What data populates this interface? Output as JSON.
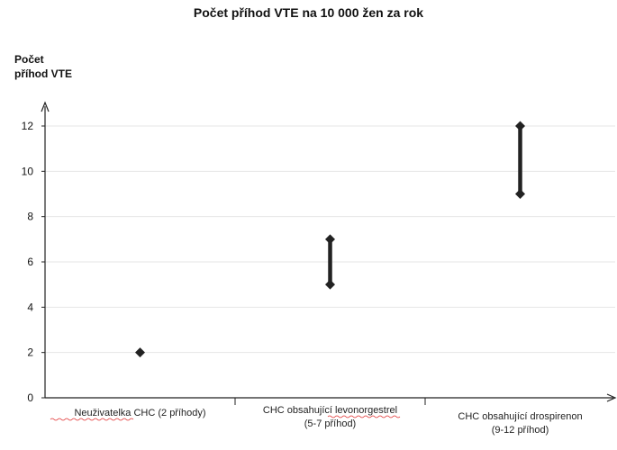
{
  "chart_data": {
    "type": "range",
    "title": "Počet příhod VTE na 10 000 žen za rok",
    "ylabel": [
      "Počet",
      "příhod VTE"
    ],
    "xlabel": "",
    "ylim": [
      0,
      12
    ],
    "yticks": [
      0,
      2,
      4,
      6,
      8,
      10,
      12
    ],
    "grid": true,
    "categories": [
      {
        "label": [
          "Neuživatelka CHC (2 příhody)"
        ],
        "low": 2,
        "high": 2
      },
      {
        "label": [
          "CHC obsahující levonorgestrel",
          "(5-7 příhod)"
        ],
        "low": 5,
        "high": 7
      },
      {
        "label": [
          "CHC obsahující drospirenon",
          "(9-12 příhod)"
        ],
        "low": 9,
        "high": 12
      }
    ],
    "colors": {
      "marker": "#222222",
      "axis": "#222222",
      "grid": "#e6e6e6",
      "underline": "#e03030"
    }
  }
}
